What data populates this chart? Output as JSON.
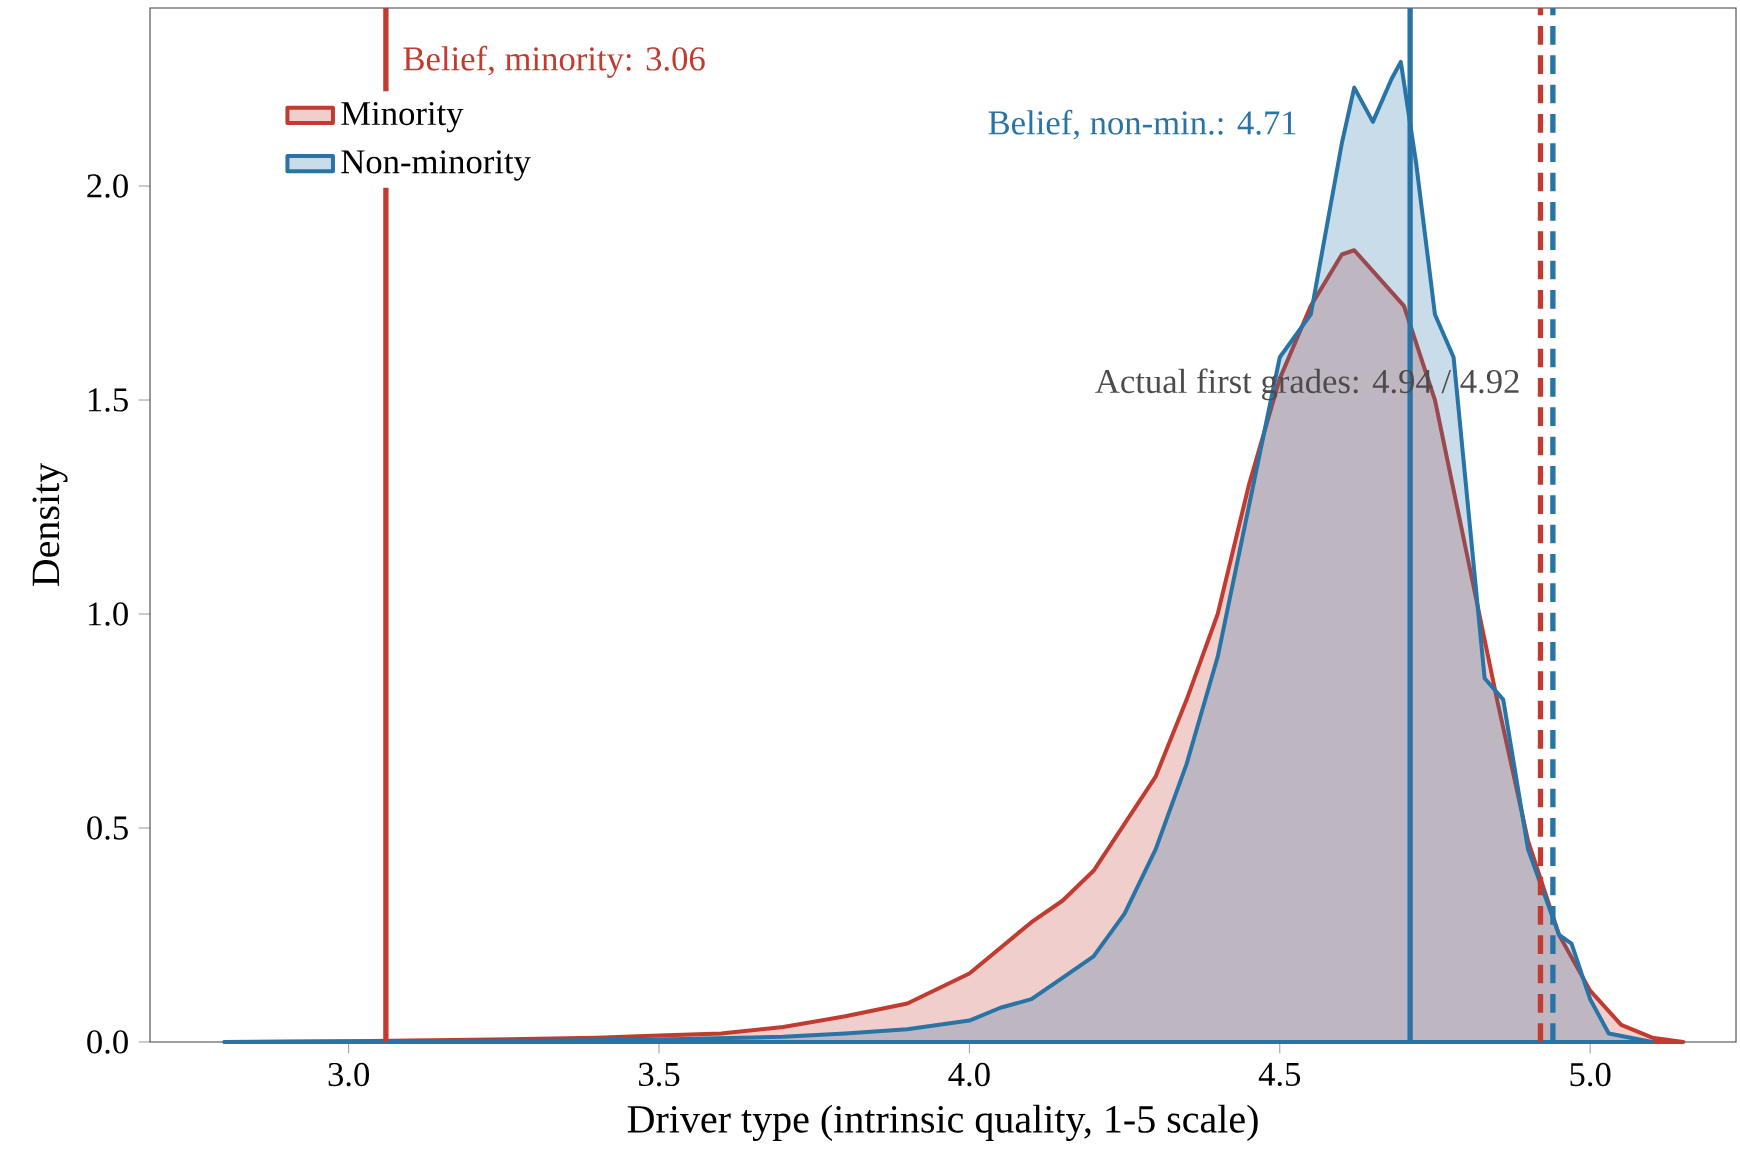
{
  "chart_data": {
    "type": "area",
    "xlabel": "Driver type (intrinsic quality, 1-5 scale)",
    "ylabel": "Density",
    "xlim": [
      2.68,
      5.235
    ],
    "ylim": [
      0,
      2.416
    ],
    "xticks": [
      {
        "value": 3.0,
        "label": "3.0"
      },
      {
        "value": 3.5,
        "label": "3.5"
      },
      {
        "value": 4.0,
        "label": "4.0"
      },
      {
        "value": 4.5,
        "label": "4.5"
      },
      {
        "value": 5.0,
        "label": "5.0"
      }
    ],
    "yticks": [
      {
        "value": 0,
        "label": "0.0"
      },
      {
        "value": 0.5,
        "label": "0.5"
      },
      {
        "value": 1.0,
        "label": "1.0"
      },
      {
        "value": 1.5,
        "label": "1.5"
      },
      {
        "value": 2.0,
        "label": "2.0"
      }
    ],
    "grid": false,
    "legend": "top left",
    "marker": "none",
    "series": [
      {
        "name": "Minority",
        "color": "#c23b30",
        "x": [
          2.8,
          3.0,
          3.2,
          3.4,
          3.5,
          3.6,
          3.7,
          3.8,
          3.9,
          4.0,
          4.1,
          4.15,
          4.2,
          4.3,
          4.35,
          4.4,
          4.45,
          4.5,
          4.55,
          4.6,
          4.62,
          4.7,
          4.75,
          4.8,
          4.85,
          4.9,
          4.95,
          5.0,
          5.05,
          5.1,
          5.15
        ],
        "values": [
          0,
          0.002,
          0.005,
          0.01,
          0.015,
          0.02,
          0.035,
          0.06,
          0.09,
          0.16,
          0.28,
          0.33,
          0.4,
          0.62,
          0.8,
          1.0,
          1.3,
          1.55,
          1.72,
          1.84,
          1.85,
          1.72,
          1.5,
          1.15,
          0.8,
          0.47,
          0.25,
          0.12,
          0.04,
          0.01,
          0
        ]
      },
      {
        "name": "Non-minority",
        "color": "#2874a6",
        "x": [
          2.8,
          3.0,
          3.3,
          3.5,
          3.7,
          3.8,
          3.9,
          4.0,
          4.05,
          4.1,
          4.15,
          4.2,
          4.25,
          4.3,
          4.35,
          4.4,
          4.45,
          4.5,
          4.55,
          4.6,
          4.62,
          4.65,
          4.68,
          4.695,
          4.72,
          4.75,
          4.78,
          4.8,
          4.83,
          4.86,
          4.9,
          4.95,
          4.97,
          5.0,
          5.03,
          5.1
        ],
        "values": [
          0,
          0.001,
          0.003,
          0.006,
          0.012,
          0.02,
          0.03,
          0.05,
          0.08,
          0.1,
          0.15,
          0.2,
          0.3,
          0.45,
          0.65,
          0.9,
          1.25,
          1.6,
          1.7,
          2.1,
          2.23,
          2.15,
          2.25,
          2.29,
          2.05,
          1.7,
          1.6,
          1.3,
          0.85,
          0.8,
          0.45,
          0.25,
          0.23,
          0.1,
          0.02,
          0
        ]
      }
    ],
    "ref_lines": [
      {
        "axis": "x",
        "value": 3.06,
        "label": "Belief, minority: 3.06",
        "color": "#c23b30",
        "line_style": "solid"
      },
      {
        "axis": "x",
        "value": 4.71,
        "label": "Belief, non-min.: 4.71",
        "color": "#2874a6",
        "line_style": "solid"
      },
      {
        "axis": "x",
        "value": 4.92,
        "color": "#c23b30",
        "line_style": "dashed"
      },
      {
        "axis": "x",
        "value": 4.94,
        "color": "#2874a6",
        "line_style": "dashed"
      }
    ],
    "annotations": [
      "Actual first grades: 4.94 / 4.92"
    ]
  }
}
